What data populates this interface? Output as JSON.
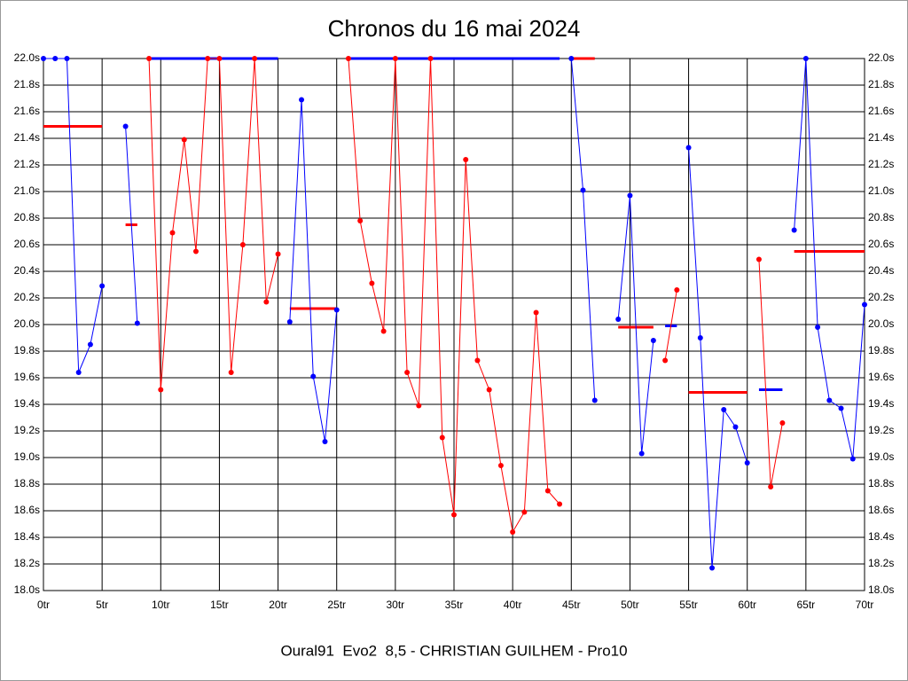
{
  "chart_data": {
    "type": "line",
    "title": "Chronos du 16 mai 2024",
    "footer": "Oural91  Evo2  8,5 - CHRISTIAN GUILHEM - Pro10",
    "x": [
      0,
      1,
      2,
      3,
      4,
      5,
      6,
      7,
      8,
      9,
      10,
      11,
      12,
      13,
      14,
      15,
      16,
      17,
      18,
      19,
      20,
      21,
      22,
      23,
      24,
      25,
      26,
      27,
      28,
      29,
      30,
      31,
      32,
      33,
      34,
      35,
      36,
      37,
      38,
      39,
      40,
      41,
      42,
      43,
      44,
      45,
      46,
      47,
      48,
      49,
      50,
      51,
      52,
      53,
      54,
      55,
      56,
      57,
      58,
      59,
      60,
      61,
      62,
      63,
      64,
      65,
      66,
      67,
      68,
      69,
      70
    ],
    "series": [
      {
        "color": "#0000ff",
        "values": [
          22,
          22,
          22,
          19.64,
          19.85,
          20.29,
          null,
          21.49,
          20.01,
          null,
          null,
          null,
          null,
          null,
          null,
          null,
          null,
          null,
          null,
          null,
          null,
          20.02,
          21.69,
          19.61,
          19.12,
          20.11,
          null,
          null,
          null,
          null,
          null,
          null,
          null,
          null,
          null,
          null,
          null,
          null,
          null,
          null,
          null,
          null,
          null,
          null,
          null,
          22,
          21.01,
          19.43,
          null,
          20.04,
          20.97,
          19.03,
          19.88,
          null,
          null,
          21.33,
          19.9,
          18.17,
          19.36,
          19.23,
          18.96,
          null,
          null,
          null,
          20.71,
          22,
          19.98,
          19.43,
          19.37,
          18.99,
          20.15
        ]
      },
      {
        "color": "#ff0000",
        "values": [
          null,
          null,
          null,
          null,
          null,
          null,
          null,
          null,
          null,
          22,
          19.51,
          20.69,
          21.39,
          20.55,
          22,
          22,
          19.64,
          20.6,
          22,
          20.17,
          20.53,
          null,
          null,
          null,
          null,
          null,
          22,
          20.78,
          20.31,
          19.95,
          22,
          19.64,
          19.39,
          22,
          19.15,
          18.57,
          21.24,
          19.73,
          19.51,
          18.94,
          18.44,
          18.59,
          20.09,
          18.75,
          18.65,
          null,
          null,
          null,
          null,
          null,
          null,
          null,
          null,
          19.73,
          20.26,
          null,
          null,
          null,
          null,
          null,
          null,
          20.49,
          18.78,
          19.26,
          null,
          null,
          null,
          null,
          null,
          null,
          null
        ]
      }
    ],
    "segments": [
      {
        "color": "#ff0000",
        "x": [
          0,
          5
        ],
        "value": 21.49
      },
      {
        "color": "#ff0000",
        "x": [
          7,
          8
        ],
        "value": 20.75
      },
      {
        "color": "#0000ff",
        "x": [
          9,
          20
        ],
        "value": 22
      },
      {
        "color": "#ff0000",
        "x": [
          21,
          25
        ],
        "value": 20.12
      },
      {
        "color": "#0000ff",
        "x": [
          26,
          44
        ],
        "value": 22
      },
      {
        "color": "#ff0000",
        "x": [
          45,
          47
        ],
        "value": 22
      },
      {
        "color": "#ff0000",
        "x": [
          49,
          52
        ],
        "value": 19.98
      },
      {
        "color": "#0000ff",
        "x": [
          53,
          54
        ],
        "value": 19.99
      },
      {
        "color": "#ff0000",
        "x": [
          55,
          60
        ],
        "value": 19.49
      },
      {
        "color": "#0000ff",
        "x": [
          61,
          63
        ],
        "value": 19.51
      },
      {
        "color": "#ff0000",
        "x": [
          64,
          70
        ],
        "value": 20.55
      }
    ],
    "xlim": [
      0,
      70
    ],
    "xticks": [
      {
        "value": 0,
        "label": "0tr"
      },
      {
        "value": 5,
        "label": "5tr"
      },
      {
        "value": 10,
        "label": "10tr"
      },
      {
        "value": 15,
        "label": "15tr"
      },
      {
        "value": 20,
        "label": "20tr"
      },
      {
        "value": 25,
        "label": "25tr"
      },
      {
        "value": 30,
        "label": "30tr"
      },
      {
        "value": 35,
        "label": "35tr"
      },
      {
        "value": 40,
        "label": "40tr"
      },
      {
        "value": 45,
        "label": "45tr"
      },
      {
        "value": 50,
        "label": "50tr"
      },
      {
        "value": 55,
        "label": "55tr"
      },
      {
        "value": 60,
        "label": "60tr"
      },
      {
        "value": 65,
        "label": "65tr"
      },
      {
        "value": 70,
        "label": "70tr"
      }
    ],
    "ylim": [
      18,
      22
    ],
    "yticks": [
      {
        "value": 18,
        "label": "18.0s"
      },
      {
        "value": 18.2,
        "label": "18.2s"
      },
      {
        "value": 18.4,
        "label": "18.4s"
      },
      {
        "value": 18.6,
        "label": "18.6s"
      },
      {
        "value": 18.8,
        "label": "18.8s"
      },
      {
        "value": 19,
        "label": "19.0s"
      },
      {
        "value": 19.2,
        "label": "19.2s"
      },
      {
        "value": 19.4,
        "label": "19.4s"
      },
      {
        "value": 19.6,
        "label": "19.6s"
      },
      {
        "value": 19.8,
        "label": "19.8s"
      },
      {
        "value": 20,
        "label": "20.0s"
      },
      {
        "value": 20.2,
        "label": "20.2s"
      },
      {
        "value": 20.4,
        "label": "20.4s"
      },
      {
        "value": 20.6,
        "label": "20.6s"
      },
      {
        "value": 20.8,
        "label": "20.8s"
      },
      {
        "value": 21,
        "label": "21.0s"
      },
      {
        "value": 21.2,
        "label": "21.2s"
      },
      {
        "value": 21.4,
        "label": "21.4s"
      },
      {
        "value": 21.6,
        "label": "21.6s"
      },
      {
        "value": 21.8,
        "label": "21.8s"
      },
      {
        "value": 22,
        "label": "22.0s"
      }
    ],
    "grid": true
  }
}
